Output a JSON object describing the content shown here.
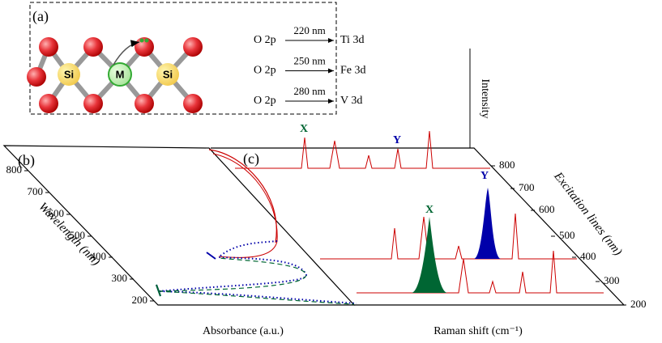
{
  "panel_a": {
    "label": "(a)",
    "atoms": [
      "Si",
      "M",
      "Si"
    ],
    "transitions": [
      {
        "from": "O 2p",
        "wavelength": "220 nm",
        "to": "Ti 3d"
      },
      {
        "from": "O 2p",
        "wavelength": "250 nm",
        "to": "Fe 3d"
      },
      {
        "from": "O 2p",
        "wavelength": "280 nm",
        "to": "V 3d"
      }
    ]
  },
  "panel_b": {
    "label": "(b)",
    "y_label": "Wavelength (nm)",
    "x_label": "Absorbance (a.u.)",
    "ticks": [
      "800",
      "700",
      "600",
      "500",
      "400",
      "300",
      "200"
    ]
  },
  "panel_c": {
    "label": "(c)",
    "z_label": "Intensity",
    "depth_label": "Excitation lines (nm)",
    "x_label": "Raman shift (cm⁻¹)",
    "ticks": [
      "800",
      "700",
      "600",
      "500",
      "400",
      "300",
      "200"
    ],
    "peak_labels": {
      "x_back": "X",
      "y_back": "Y",
      "y_front": "Y",
      "x_front": "X"
    }
  }
}
